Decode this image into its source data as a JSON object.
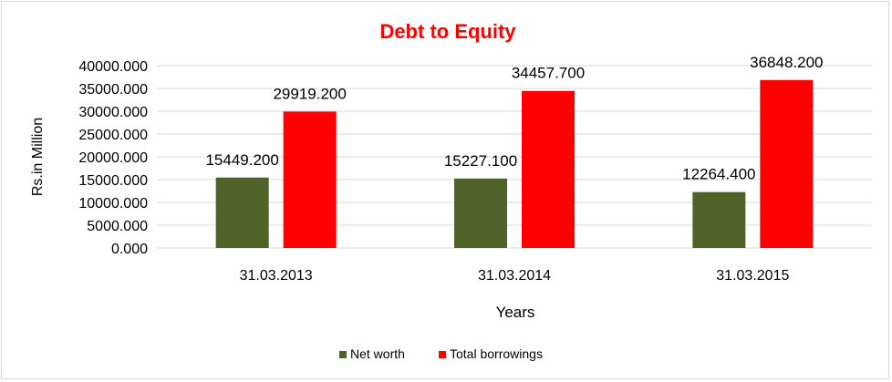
{
  "chart_data": {
    "type": "bar",
    "title": "Debt to Equity",
    "xlabel": "Years",
    "ylabel": "Rs.in Million",
    "categories": [
      "31.03.2013",
      "31.03.2014",
      "31.03.2015"
    ],
    "series": [
      {
        "name": "Net worth",
        "values": [
          15449.2,
          15227.1,
          12264.4
        ],
        "color": "#4f6228"
      },
      {
        "name": "Total borrowings",
        "values": [
          29919.2,
          34457.7,
          36848.2
        ],
        "color": "#ff0000"
      }
    ],
    "ylim": [
      0,
      40000
    ],
    "yticks": [
      0,
      5000,
      10000,
      15000,
      20000,
      25000,
      30000,
      35000,
      40000
    ],
    "tick_labels": [
      "0.000",
      "5000.000",
      "10000.000",
      "15000.000",
      "20000.000",
      "25000.000",
      "30000.000",
      "35000.000",
      "40000.000"
    ],
    "data_labels": [
      [
        "15449.200",
        "15227.100",
        "12264.400"
      ],
      [
        "29919.200",
        "34457.700",
        "36848.200"
      ]
    ],
    "grid": true,
    "legend": "bottom",
    "title_color": "#ff0000",
    "grid_color": "#d9d9d9"
  }
}
